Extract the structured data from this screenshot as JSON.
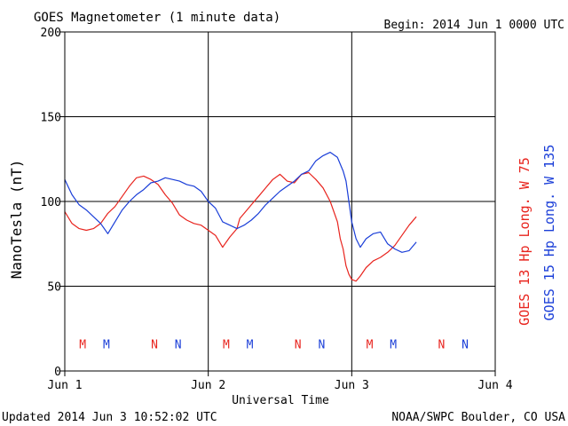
{
  "header": {
    "title": "GOES Magnetometer (1 minute data)",
    "begin": "Begin:  2014 Jun 1 0000 UTC"
  },
  "footer": {
    "updated": "Updated 2014 Jun  3 10:52:02 UTC",
    "credit": "NOAA/SWPC Boulder, CO USA"
  },
  "chart_data": {
    "type": "line",
    "title": "GOES Magnetometer (1 minute data)",
    "xlabel": "Universal Time",
    "ylabel": "NanoTesla (nT)",
    "xlim": [
      0,
      3
    ],
    "ylim": [
      0,
      200
    ],
    "x_ticks": [
      {
        "value": 0,
        "label": "Jun 1"
      },
      {
        "value": 1,
        "label": "Jun 2"
      },
      {
        "value": 2,
        "label": "Jun 3"
      },
      {
        "value": 3,
        "label": "Jun 4"
      }
    ],
    "y_ticks": [
      0,
      50,
      100,
      150,
      200
    ],
    "grid": true,
    "x_unit": "days since 2014 Jun 1 0000 UTC",
    "series": [
      {
        "name": "GOES 13 Hp  Long. W 75",
        "color": "#e8241e",
        "x": [
          0.0,
          0.05,
          0.1,
          0.15,
          0.2,
          0.25,
          0.3,
          0.35,
          0.4,
          0.45,
          0.5,
          0.55,
          0.6,
          0.65,
          0.7,
          0.75,
          0.8,
          0.85,
          0.9,
          0.95,
          1.0,
          1.05,
          1.1,
          1.15,
          1.2,
          1.22,
          1.25,
          1.3,
          1.35,
          1.4,
          1.45,
          1.5,
          1.55,
          1.6,
          1.65,
          1.7,
          1.75,
          1.8,
          1.85,
          1.9,
          1.92,
          1.94,
          1.96,
          1.98,
          2.0,
          2.03,
          2.06,
          2.1,
          2.15,
          2.2,
          2.25,
          2.3,
          2.35,
          2.4,
          2.45
        ],
        "y": [
          94,
          87,
          84,
          83,
          84,
          87,
          93,
          97,
          103,
          109,
          114,
          115,
          113,
          110,
          104,
          99,
          92,
          89,
          87,
          86,
          83,
          80,
          73,
          79,
          84,
          90,
          93,
          98,
          103,
          108,
          113,
          116,
          112,
          111,
          116,
          117,
          113,
          108,
          100,
          88,
          78,
          72,
          62,
          57,
          54,
          53,
          56,
          61,
          65,
          67,
          70,
          74,
          80,
          86,
          91
        ]
      },
      {
        "name": "GOES 15 Hp  Long. W 135",
        "color": "#1a3ed8",
        "x": [
          0.0,
          0.05,
          0.1,
          0.15,
          0.2,
          0.25,
          0.3,
          0.35,
          0.4,
          0.45,
          0.5,
          0.55,
          0.6,
          0.65,
          0.7,
          0.75,
          0.8,
          0.85,
          0.9,
          0.95,
          1.0,
          1.05,
          1.1,
          1.15,
          1.2,
          1.25,
          1.3,
          1.35,
          1.4,
          1.45,
          1.5,
          1.55,
          1.6,
          1.65,
          1.7,
          1.75,
          1.8,
          1.85,
          1.9,
          1.92,
          1.94,
          1.96,
          1.98,
          2.0,
          2.03,
          2.06,
          2.1,
          2.15,
          2.2,
          2.25,
          2.3,
          2.35,
          2.4,
          2.45
        ],
        "y": [
          113,
          104,
          98,
          95,
          91,
          87,
          81,
          88,
          95,
          100,
          104,
          107,
          111,
          112,
          114,
          113,
          112,
          110,
          109,
          106,
          100,
          96,
          88,
          86,
          84,
          86,
          89,
          93,
          98,
          102,
          106,
          109,
          112,
          116,
          118,
          124,
          127,
          129,
          126,
          122,
          118,
          112,
          100,
          88,
          78,
          73,
          78,
          81,
          82,
          75,
          72,
          70,
          71,
          76
        ]
      }
    ],
    "markers": [
      {
        "label": "M",
        "x": 0.125,
        "color": "#e8241e"
      },
      {
        "label": "M",
        "x": 0.29,
        "color": "#1a3ed8"
      },
      {
        "label": "N",
        "x": 0.625,
        "color": "#e8241e"
      },
      {
        "label": "N",
        "x": 0.79,
        "color": "#1a3ed8"
      },
      {
        "label": "M",
        "x": 1.125,
        "color": "#e8241e"
      },
      {
        "label": "M",
        "x": 1.29,
        "color": "#1a3ed8"
      },
      {
        "label": "N",
        "x": 1.625,
        "color": "#e8241e"
      },
      {
        "label": "N",
        "x": 1.79,
        "color": "#1a3ed8"
      },
      {
        "label": "M",
        "x": 2.125,
        "color": "#e8241e"
      },
      {
        "label": "M",
        "x": 2.29,
        "color": "#1a3ed8"
      },
      {
        "label": "N",
        "x": 2.625,
        "color": "#e8241e"
      },
      {
        "label": "N",
        "x": 2.79,
        "color": "#1a3ed8"
      }
    ],
    "marker_y": 16
  }
}
